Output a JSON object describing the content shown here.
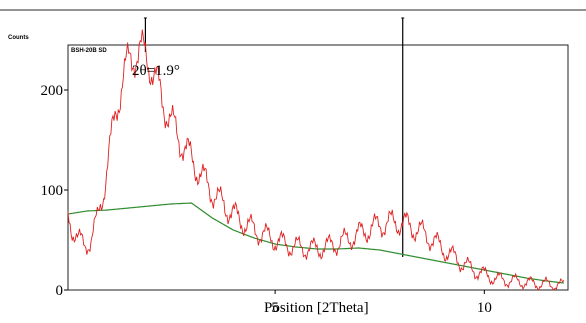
{
  "chart_data": {
    "type": "line",
    "title": "",
    "sample_label": "BSH-20B SD",
    "ylabel": "Counts",
    "xlabel": "Position [2Theta]",
    "annotation": "2θ=1.9°",
    "xlim": [
      0.05,
      12.0
    ],
    "ylim": [
      0,
      245
    ],
    "x_ticks": [
      {
        "value": 5,
        "label": "5"
      },
      {
        "value": 10,
        "label": "10"
      }
    ],
    "y_ticks": [
      {
        "value": 0,
        "label": "0"
      },
      {
        "value": 100,
        "label": "100"
      },
      {
        "value": 200,
        "label": "200"
      }
    ],
    "grid": false,
    "series": [
      {
        "role": "observed",
        "color": "#e02020",
        "x": [
          0.05,
          0.15,
          0.3,
          0.45,
          0.6,
          0.75,
          0.9,
          1.05,
          1.2,
          1.35,
          1.5,
          1.65,
          1.8,
          1.9,
          2.0,
          2.15,
          2.3,
          2.5,
          2.7,
          2.9,
          3.1,
          3.3,
          3.5,
          3.7,
          3.9,
          4.1,
          4.3,
          4.5,
          4.7,
          4.9,
          5.1,
          5.3,
          5.5,
          5.7,
          5.9,
          6.1,
          6.3,
          6.5,
          6.7,
          6.9,
          7.1,
          7.3,
          7.5,
          7.7,
          7.9,
          8.1,
          8.3,
          8.5,
          8.7,
          8.9,
          9.1,
          9.3,
          9.5,
          9.7,
          9.9,
          10.1,
          10.3,
          10.5,
          10.7,
          10.9,
          11.1,
          11.3,
          11.5,
          11.7,
          11.9
        ],
        "y": [
          75,
          62,
          50,
          45,
          50,
          70,
          100,
          140,
          180,
          210,
          228,
          236,
          238,
          235,
          228,
          210,
          190,
          170,
          152,
          138,
          124,
          110,
          98,
          88,
          80,
          72,
          66,
          60,
          56,
          52,
          48,
          45,
          43,
          42,
          41,
          42,
          44,
          47,
          50,
          54,
          58,
          62,
          65,
          67,
          68,
          66,
          62,
          58,
          52,
          45,
          38,
          32,
          26,
          21,
          17,
          14,
          11,
          10,
          9,
          8,
          7,
          6,
          6,
          5,
          5
        ]
      },
      {
        "role": "background",
        "color": "#2e8b2e",
        "x": [
          0.05,
          0.5,
          1.0,
          1.5,
          2.0,
          2.5,
          3.0,
          3.5,
          4.0,
          4.5,
          5.0,
          5.5,
          6.0,
          6.5,
          7.0,
          7.5,
          8.0,
          8.5,
          9.0,
          9.5,
          10.0,
          10.5,
          11.0,
          11.5,
          11.9
        ],
        "y": [
          76,
          79,
          80,
          82,
          84,
          86,
          87,
          72,
          60,
          52,
          46,
          43,
          41,
          41,
          42,
          40,
          36,
          32,
          28,
          24,
          20,
          16,
          12,
          9,
          7
        ]
      }
    ],
    "peak_markers": [
      {
        "x": 1.9,
        "y": 238
      },
      {
        "x": 8.05,
        "y": 33
      }
    ]
  }
}
